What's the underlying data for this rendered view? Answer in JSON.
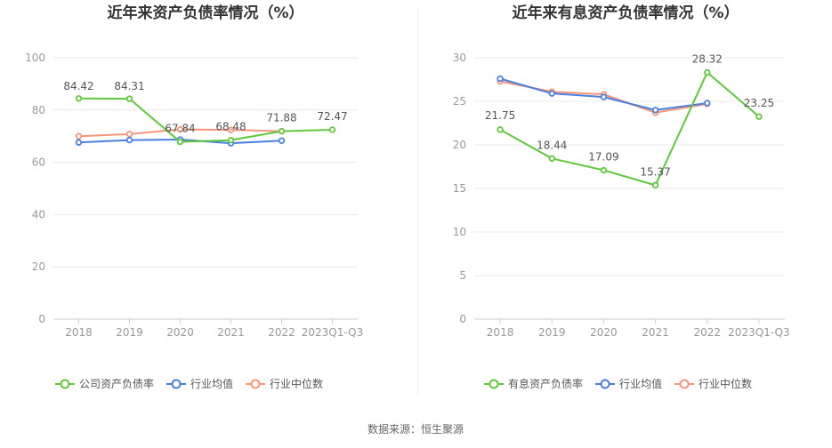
{
  "source_label": "数据来源：恒生聚源",
  "colors": {
    "company": "#5fc93b",
    "avg": "#4a7fe0",
    "median": "#f5957a"
  },
  "chart_data": [
    {
      "type": "line",
      "title": "近年来资产负债率情况（%）",
      "categories": [
        "2018",
        "2019",
        "2020",
        "2021",
        "2022",
        "2023Q1-Q3"
      ],
      "ylim": [
        0,
        100
      ],
      "yticks": [
        0,
        20,
        40,
        60,
        80,
        100
      ],
      "grid": true,
      "legend_position": "bottom",
      "series": [
        {
          "name": "公司资产负债率",
          "key": "company",
          "values": [
            84.42,
            84.31,
            67.84,
            68.48,
            71.88,
            72.47
          ],
          "labels": [
            "84.42",
            "84.31",
            "67.84",
            "68.48",
            "71.88",
            "72.47"
          ]
        },
        {
          "name": "行业均值",
          "key": "avg",
          "values": [
            67.6,
            68.5,
            68.7,
            67.3,
            68.3,
            null
          ]
        },
        {
          "name": "行业中位数",
          "key": "median",
          "values": [
            70.0,
            70.8,
            72.6,
            72.4,
            71.9,
            null
          ]
        }
      ]
    },
    {
      "type": "line",
      "title": "近年来有息资产负债率情况（%）",
      "categories": [
        "2018",
        "2019",
        "2020",
        "2021",
        "2022",
        "2023Q1-Q3"
      ],
      "ylim": [
        0,
        30
      ],
      "yticks": [
        0,
        5,
        10,
        15,
        20,
        25,
        30
      ],
      "grid": true,
      "legend_position": "bottom",
      "series": [
        {
          "name": "有息资产负债率",
          "key": "company",
          "values": [
            21.75,
            18.44,
            17.09,
            15.37,
            28.32,
            23.25
          ],
          "labels": [
            "21.75",
            "18.44",
            "17.09",
            "15.37",
            "28.32",
            "23.25"
          ]
        },
        {
          "name": "行业均值",
          "key": "avg",
          "values": [
            27.6,
            25.9,
            25.5,
            24.0,
            24.8,
            null
          ]
        },
        {
          "name": "行业中位数",
          "key": "median",
          "values": [
            27.3,
            26.1,
            25.8,
            23.7,
            24.7,
            null
          ]
        }
      ]
    }
  ]
}
